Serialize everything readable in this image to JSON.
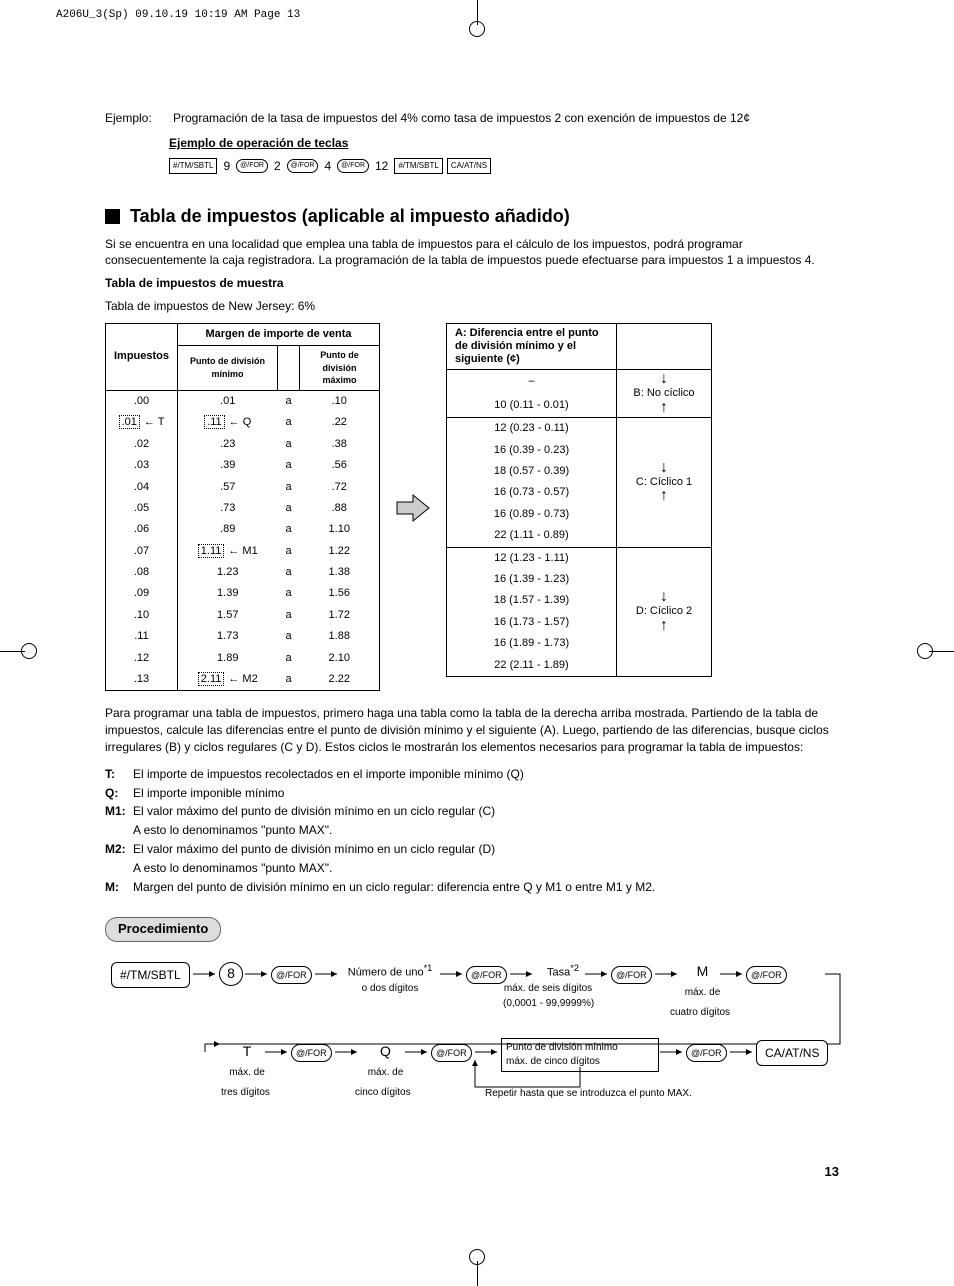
{
  "header_line": "A206U_3(Sp)  09.10.19 10:19 AM  Page 13",
  "example": {
    "label": "Ejemplo:",
    "text": "Programación de la tasa de impuestos del 4% como tasa de impuestos 2 con exención de impuestos de 12¢",
    "subheading": "Ejemplo de operación de teclas",
    "keys": {
      "k1": "#/TM/SBTL",
      "n1": "9",
      "k2": "@/FOR",
      "n2": "2",
      "k3": "@/FOR",
      "n3": "4",
      "k4": "@/FOR",
      "n4": "12",
      "k5": "#/TM/SBTL",
      "k6": "CA/AT/NS"
    }
  },
  "section": {
    "title": "Tabla de impuestos (aplicable al impuesto añadido)",
    "intro": "Si se encuentra en una localidad que emplea una tabla de impuestos para el cálculo de los impuestos, podrá programar consecuentemente la caja registradora. La programación de la tabla de impuestos puede efectuarse para impuestos 1 a impuestos 4.",
    "sample_title": "Tabla de impuestos de muestra",
    "sample_text": "Tabla de impuestos de New Jersey: 6%"
  },
  "left_table": {
    "col_tax": "Impuestos",
    "col_range": "Margen de importe de venta",
    "col_min": "Punto de división mínimo",
    "col_max": "Punto de división máximo",
    "rows": [
      {
        "tax": ".00",
        "min": ".01",
        "a": "a",
        "max": ".10"
      },
      {
        "tax": ".01",
        "min": ".11",
        "a": "a",
        "max": ".22",
        "ann_t": "T",
        "ann_q": "Q"
      },
      {
        "tax": ".02",
        "min": ".23",
        "a": "a",
        "max": ".38"
      },
      {
        "tax": ".03",
        "min": ".39",
        "a": "a",
        "max": ".56"
      },
      {
        "tax": ".04",
        "min": ".57",
        "a": "a",
        "max": ".72"
      },
      {
        "tax": ".05",
        "min": ".73",
        "a": "a",
        "max": ".88"
      },
      {
        "tax": ".06",
        "min": ".89",
        "a": "a",
        "max": "1.10"
      },
      {
        "tax": ".07",
        "min": "1.11",
        "a": "a",
        "max": "1.22",
        "ann_m1": "M1"
      },
      {
        "tax": ".08",
        "min": "1.23",
        "a": "a",
        "max": "1.38"
      },
      {
        "tax": ".09",
        "min": "1.39",
        "a": "a",
        "max": "1.56"
      },
      {
        "tax": ".10",
        "min": "1.57",
        "a": "a",
        "max": "1.72"
      },
      {
        "tax": ".11",
        "min": "1.73",
        "a": "a",
        "max": "1.88"
      },
      {
        "tax": ".12",
        "min": "1.89",
        "a": "a",
        "max": "2.10"
      },
      {
        "tax": ".13",
        "min": "2.11",
        "a": "a",
        "max": "2.22",
        "ann_m2": "M2"
      }
    ]
  },
  "right_table": {
    "head": "A: Diferencia entre el punto de división mínimo y el siguiente (¢)",
    "groups": [
      {
        "label": "B: No cíclico",
        "rows": [
          "–",
          "10 (0.11 - 0.01)"
        ]
      },
      {
        "label": "C: Cíclico 1",
        "rows": [
          "12 (0.23 - 0.11)",
          "16 (0.39 - 0.23)",
          "18 (0.57 - 0.39)",
          "16 (0.73 - 0.57)",
          "16 (0.89 - 0.73)",
          "22 (1.11 - 0.89)"
        ]
      },
      {
        "label": "D: Cíclico 2",
        "rows": [
          "12 (1.23 - 1.11)",
          "16 (1.39 - 1.23)",
          "18 (1.57 - 1.39)",
          "16 (1.73 - 1.57)",
          "16 (1.89 - 1.73)",
          "22 (2.11 - 1.89)"
        ]
      }
    ]
  },
  "explain": "Para programar una tabla de impuestos, primero haga una tabla como la tabla de la derecha arriba mostrada. Partiendo de la tabla de impuestos, calcule las diferencias entre el punto de división mínimo y el siguiente (A). Luego, partiendo de las diferencias, busque ciclos irregulares (B) y ciclos regulares (C y D). Estos ciclos le mostrarán los elementos necesarios para programar la tabla de impuestos:",
  "defs": {
    "T": "El importe de impuestos recolectados en el importe imponible mínimo (Q)",
    "Q": "El importe imponible mínimo",
    "M1a": "El valor máximo del punto de división mínimo en un ciclo regular (C)",
    "M1b": "A esto lo denominamos \"punto MAX\".",
    "M2a": "El valor máximo del punto de división mínimo en un ciclo regular (D)",
    "M2b": "A esto lo denominamos \"punto MAX\".",
    "M": "Margen del punto de división mínimo en un ciclo regular: diferencia entre Q y M1 o entre M1 y M2."
  },
  "procedure": {
    "pill": "Procedimiento",
    "tm": "#/TM/SBTL",
    "eight": "8",
    "for": "@/FOR",
    "num_digits": "Número de uno",
    "num_digits_sup": "*1",
    "num_digits_sub": "o dos dígitos",
    "tasa": "Tasa",
    "tasa_sup": "*2",
    "tasa_sub1": "máx. de seis dígitos",
    "tasa_sub2": "(0,0001 - 99,9999%)",
    "M": "M",
    "M_sub1": "máx. de",
    "M_sub2": "cuatro dígitos",
    "T": "T",
    "T_sub1": "máx. de",
    "T_sub2": "tres dígitos",
    "Q": "Q",
    "Q_sub1": "máx. de",
    "Q_sub2": "cinco dígitos",
    "minbp": "Punto de división mínimo",
    "minbp_sub": "máx. de cinco dígitos",
    "ca": "CA/AT/NS",
    "repeat": "Repetir hasta que se introduzca el punto MAX."
  },
  "page_number": "13",
  "colors": {
    "text": "#000000",
    "bg": "#ffffff",
    "pill": "#dddddd",
    "border": "#000000"
  }
}
